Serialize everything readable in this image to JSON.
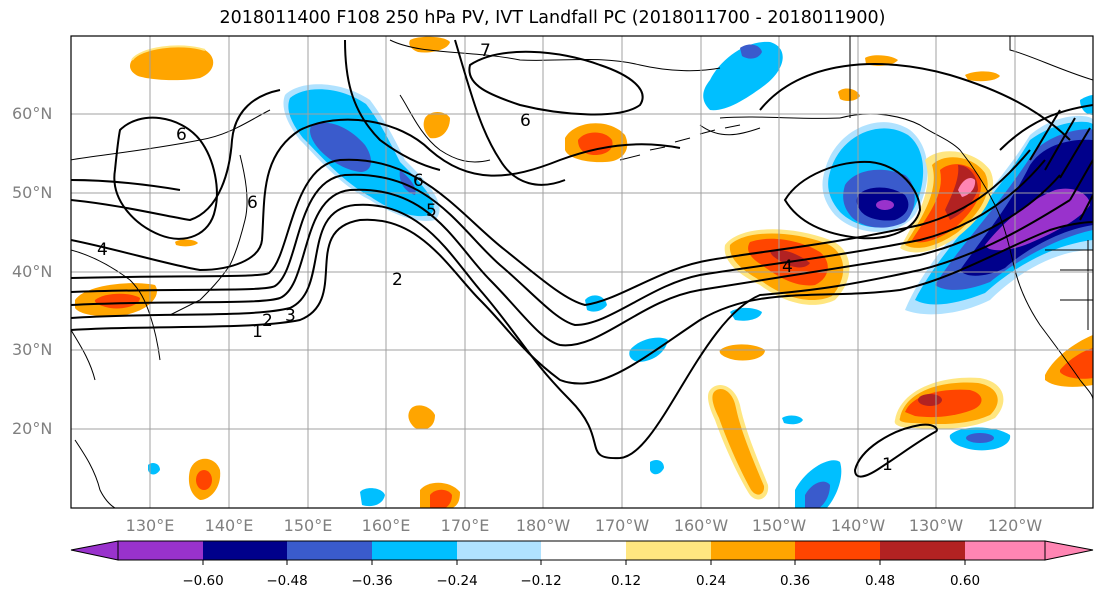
{
  "title": "2018011400 F108 250 hPa PV, IVT Landfall PC (2018011700 - 2018011900)",
  "lat_labels": [
    "60°N",
    "50°N",
    "40°N",
    "30°N",
    "20°N"
  ],
  "lon_labels": [
    "130°E",
    "140°E",
    "150°E",
    "160°E",
    "170°E",
    "180°W",
    "170°W",
    "160°W",
    "150°W",
    "140°W",
    "130°W",
    "120°W"
  ],
  "contour_labels": [
    "1",
    "2",
    "3",
    "4",
    "5",
    "6",
    "7",
    "2",
    "6",
    "1",
    "6",
    "6",
    "4"
  ],
  "colorbar": {
    "tick_labels": [
      "−0.60",
      "−0.48",
      "−0.36",
      "−0.24",
      "−0.12",
      "0.12",
      "0.24",
      "0.36",
      "0.48",
      "0.60"
    ],
    "colors": [
      "#9932cc",
      "#00008b",
      "#3a5bcc",
      "#00bfff",
      "#b0e2ff",
      "#ffffff",
      "#ffe680",
      "#ffa500",
      "#ff4500",
      "#b22222",
      "#ff85b3"
    ]
  },
  "shading_colors": {
    "purple": "#9932cc",
    "navy": "#00008b",
    "blue": "#3a5bcc",
    "cyan": "#00bfff",
    "light_cyan": "#b0e2ff",
    "yellow": "#ffe680",
    "orange": "#ffa500",
    "red_orange": "#ff4500",
    "dark_red": "#b22222",
    "pink": "#ff85b3"
  }
}
